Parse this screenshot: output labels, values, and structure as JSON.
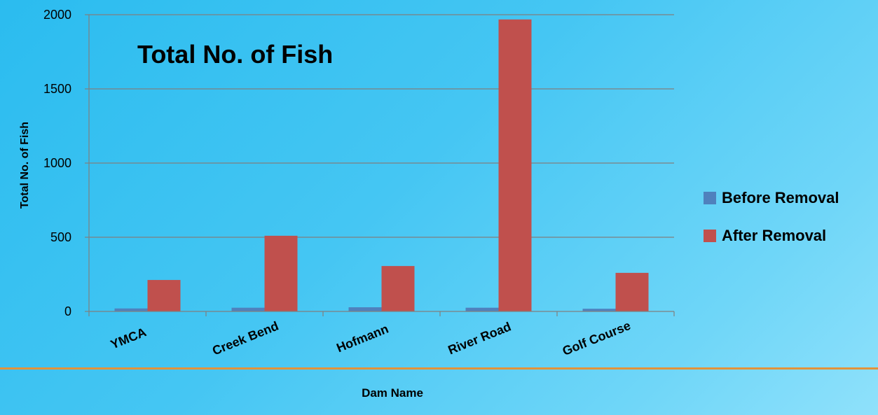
{
  "chart_data": {
    "type": "bar",
    "title": "Total No. of Fish",
    "xlabel": "Dam Name",
    "ylabel": "Total No. of Fish",
    "categories": [
      "YMCA",
      "Creek Bend",
      "Hofmann",
      "River Road",
      "Golf Course"
    ],
    "series": [
      {
        "name": "Before Removal",
        "color": "#4f81bd",
        "values": [
          20,
          25,
          28,
          25,
          18
        ]
      },
      {
        "name": "After Removal",
        "color": "#c0504d",
        "values": [
          212,
          510,
          306,
          1968,
          260
        ]
      }
    ],
    "ylim": [
      0,
      2000
    ],
    "yticks": [
      0,
      500,
      1000,
      1500,
      2000
    ],
    "grid": true,
    "legend_position": "right",
    "gridline_color": "#7f7f7f",
    "divider_color": "#e2933a"
  }
}
